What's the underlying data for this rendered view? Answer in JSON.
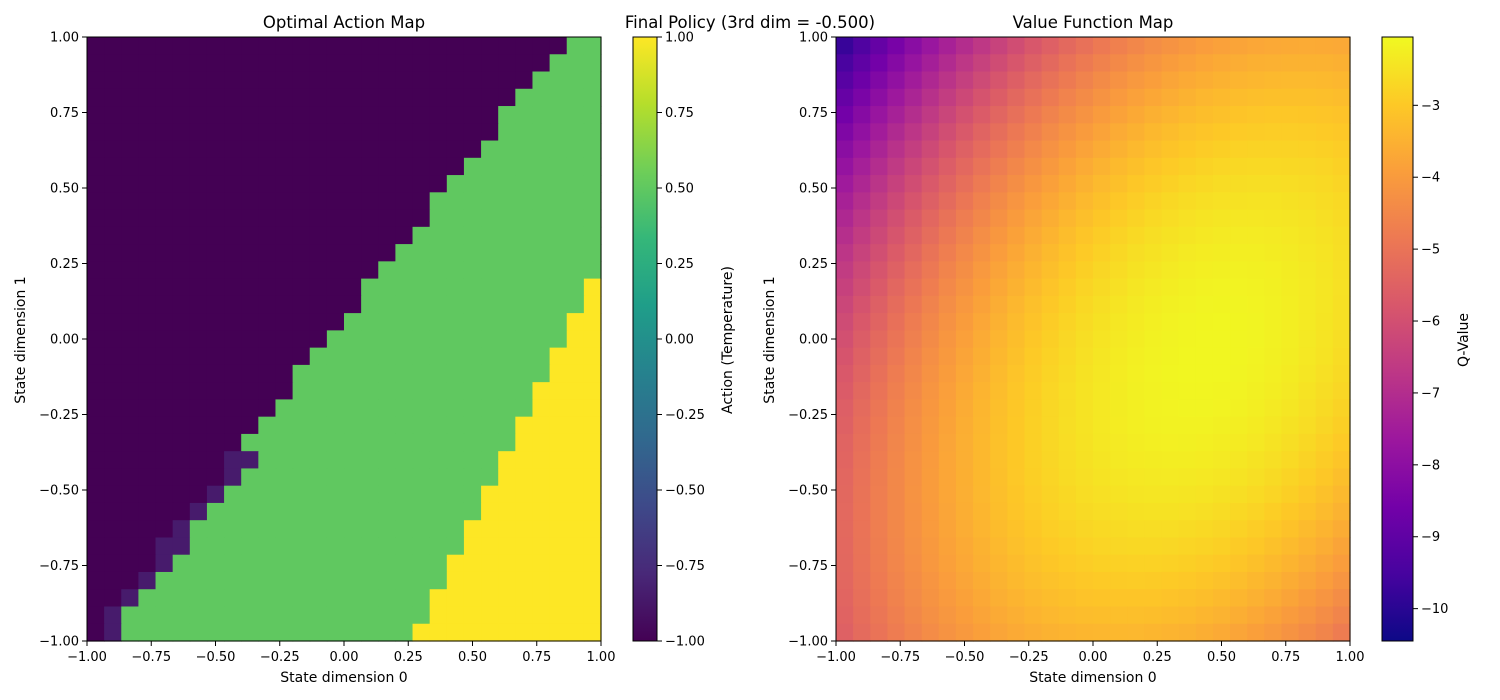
{
  "figure": {
    "suptitle": "Final Policy (3rd dim = -0.500)"
  },
  "chart_data": [
    {
      "type": "heatmap",
      "title": "Optimal Action Map",
      "xlabel": "State dimension 0",
      "ylabel": "State dimension 1",
      "xlim": [
        -1,
        1
      ],
      "ylim": [
        -1,
        1
      ],
      "grid_size": [
        30,
        35
      ],
      "x_ticks": [
        -1.0,
        -0.75,
        -0.5,
        -0.25,
        0.0,
        0.25,
        0.5,
        0.75,
        1.0
      ],
      "x_tick_labels": [
        "−1.00",
        "−0.75",
        "−0.50",
        "−0.25",
        "0.00",
        "0.25",
        "0.50",
        "0.75",
        "1.00"
      ],
      "y_ticks": [
        -1.0,
        -0.75,
        -0.5,
        -0.25,
        0.0,
        0.25,
        0.5,
        0.75,
        1.0
      ],
      "y_tick_labels": [
        "−1.00",
        "−0.75",
        "−0.50",
        "−0.25",
        "0.00",
        "0.25",
        "0.50",
        "0.75",
        "1.00"
      ],
      "colormap": "viridis",
      "colorbar": {
        "label": "Action (Temperature)",
        "range": [
          -1,
          1
        ],
        "ticks": [
          -1.0,
          -0.75,
          -0.5,
          -0.25,
          0.0,
          0.25,
          0.5,
          0.75,
          1.0
        ],
        "tick_labels": [
          "−1.00",
          "−0.75",
          "−0.50",
          "−0.25",
          "0.00",
          "0.25",
          "0.50",
          "0.75",
          "1.00"
        ]
      },
      "action_levels": [
        -1.0,
        0.5,
        1.0
      ],
      "boundaries": {
        "upper_region_value": -1.0,
        "middle_region_value": 0.5,
        "lower_region_value": 1.0,
        "upper_boundary_x_at_top": 0.88,
        "upper_boundary_slope_dy_per_dx": 1.08,
        "lower_boundary_x_at_bottom": 0.27,
        "lower_boundary_slope_dy_per_dx": 1.7,
        "transition_value": -0.85
      }
    },
    {
      "type": "heatmap",
      "title": "Value Function Map",
      "xlabel": "State dimension 0",
      "ylabel": "State dimension 1",
      "xlim": [
        -1,
        1
      ],
      "ylim": [
        -1,
        1
      ],
      "grid_size": [
        30,
        35
      ],
      "x_ticks": [
        -1.0,
        -0.75,
        -0.5,
        -0.25,
        0.0,
        0.25,
        0.5,
        0.75,
        1.0
      ],
      "x_tick_labels": [
        "−1.00",
        "−0.75",
        "−0.50",
        "−0.25",
        "0.00",
        "0.25",
        "0.50",
        "0.75",
        "1.00"
      ],
      "y_ticks": [
        -1.0,
        -0.75,
        -0.5,
        -0.25,
        0.0,
        0.25,
        0.5,
        0.75,
        1.0
      ],
      "y_tick_labels": [
        "−1.00",
        "−0.75",
        "−0.50",
        "−0.25",
        "0.00",
        "0.25",
        "0.50",
        "0.75",
        "1.00"
      ],
      "colormap": "plasma",
      "colorbar": {
        "label": "Q-Value",
        "range": [
          -10.45,
          -2.05
        ],
        "ticks": [
          -10,
          -9,
          -8,
          -7,
          -6,
          -5,
          -4,
          -3
        ],
        "tick_labels": [
          "−10",
          "−9",
          "−8",
          "−7",
          "−6",
          "−5",
          "−4",
          "−3"
        ]
      },
      "value_model": {
        "max_value": -2.1,
        "ridge_point": [
          0.45,
          -0.05
        ],
        "ridge_direction_slope": 1.1,
        "along_ridge_coef": 1.1,
        "across_ridge_coef": 4.6,
        "min_value_top_left": -10.4
      }
    }
  ]
}
